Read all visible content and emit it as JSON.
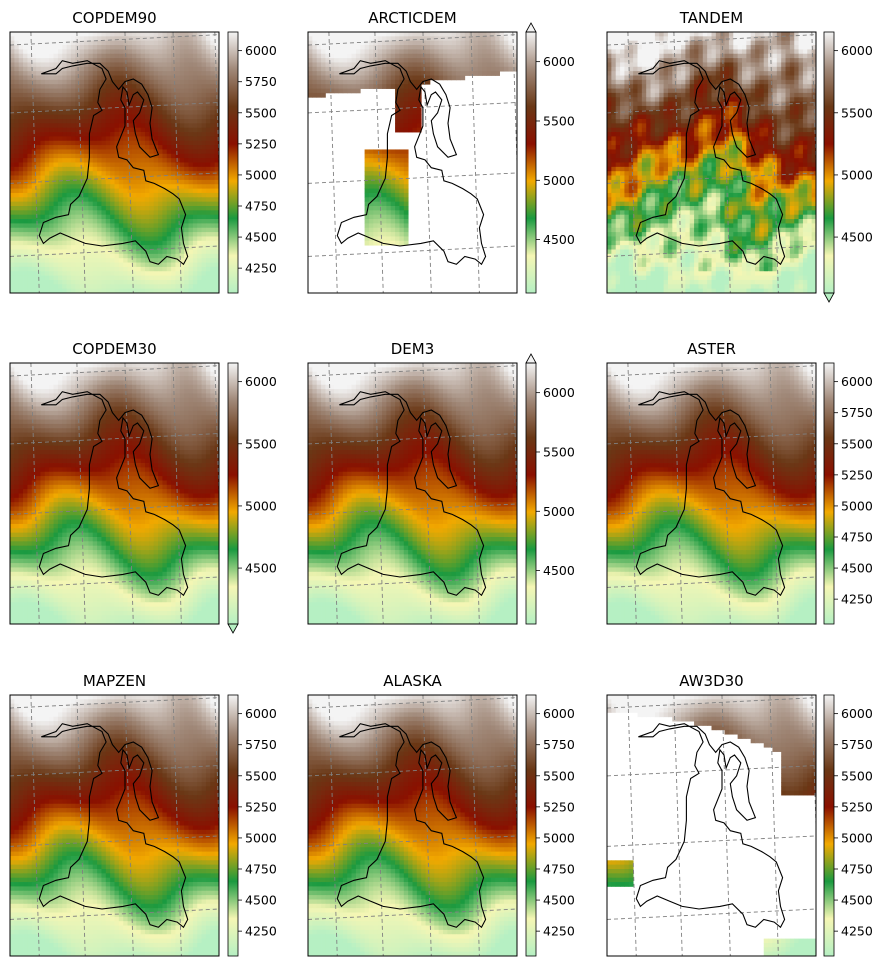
{
  "figure": {
    "description_type": "3x3 grid of DEM elevation maps with glacier outline and graticule"
  },
  "chart_data": [
    {
      "type": "heatmap",
      "title": "COPDEM90",
      "coverage": "full",
      "pattern": "smooth",
      "colorbar": {
        "min": 4050,
        "max": 6150,
        "ticks": [
          4250,
          4500,
          4750,
          5000,
          5250,
          5500,
          5750,
          6000
        ],
        "extend": "neither"
      }
    },
    {
      "type": "heatmap",
      "title": "ARCTICDEM",
      "coverage": "arctic",
      "pattern": "smooth",
      "colorbar": {
        "min": 4050,
        "max": 6250,
        "ticks": [
          4500,
          5000,
          5500,
          6000
        ],
        "extend": "max"
      }
    },
    {
      "type": "heatmap",
      "title": "TANDEM",
      "coverage": "full",
      "pattern": "noisy",
      "colorbar": {
        "min": 4050,
        "max": 6150,
        "ticks": [
          4500,
          5000,
          5500,
          6000
        ],
        "extend": "min"
      }
    },
    {
      "type": "heatmap",
      "title": "COPDEM30",
      "coverage": "full",
      "pattern": "smooth",
      "colorbar": {
        "min": 4050,
        "max": 6150,
        "ticks": [
          4500,
          5000,
          5500,
          6000
        ],
        "extend": "min"
      }
    },
    {
      "type": "heatmap",
      "title": "DEM3",
      "coverage": "full",
      "pattern": "smooth",
      "colorbar": {
        "min": 4050,
        "max": 6250,
        "ticks": [
          4500,
          5000,
          5500,
          6000
        ],
        "extend": "max"
      }
    },
    {
      "type": "heatmap",
      "title": "ASTER",
      "coverage": "full",
      "pattern": "smooth",
      "colorbar": {
        "min": 4050,
        "max": 6150,
        "ticks": [
          4250,
          4500,
          4750,
          5000,
          5250,
          5500,
          5750,
          6000
        ],
        "extend": "neither"
      }
    },
    {
      "type": "heatmap",
      "title": "MAPZEN",
      "coverage": "full",
      "pattern": "smooth",
      "colorbar": {
        "min": 4050,
        "max": 6150,
        "ticks": [
          4250,
          4500,
          4750,
          5000,
          5250,
          5500,
          5750,
          6000
        ],
        "extend": "neither"
      }
    },
    {
      "type": "heatmap",
      "title": "ALASKA",
      "coverage": "full",
      "pattern": "smooth",
      "colorbar": {
        "min": 4050,
        "max": 6150,
        "ticks": [
          4250,
          4500,
          4750,
          5000,
          5250,
          5500,
          5750,
          6000
        ],
        "extend": "neither"
      }
    },
    {
      "type": "heatmap",
      "title": "AW3D30",
      "coverage": "aw3d",
      "pattern": "smooth",
      "colorbar": {
        "min": 4050,
        "max": 6150,
        "ticks": [
          4250,
          4500,
          4750,
          5000,
          5250,
          5500,
          5750,
          6000
        ],
        "extend": "neither"
      }
    }
  ],
  "colors": {
    "colormap": [
      "#b6f0c3",
      "#f5f6b4",
      "#1a9a40",
      "#f2a900",
      "#8a1000",
      "#6a3816",
      "#a08878",
      "#f4f4f4"
    ],
    "outline": "#000000",
    "grid": "#808080"
  }
}
